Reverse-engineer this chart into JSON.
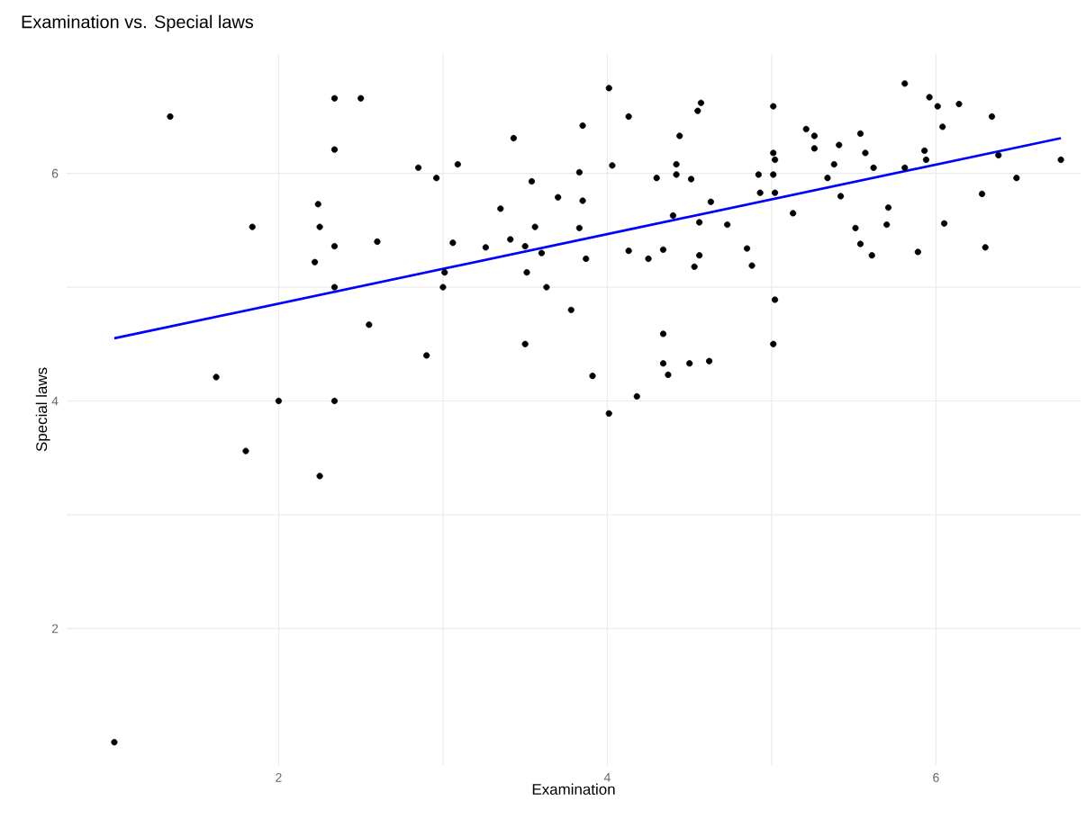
{
  "chart_data": {
    "type": "scatter",
    "title": "Examination vs. Special laws",
    "xlabel": "Examination",
    "ylabel": "Special laws",
    "xlim": [
      0.71,
      6.88
    ],
    "ylim": [
      0.8,
      7.05
    ],
    "xticks": [
      2,
      4,
      6
    ],
    "yticks": [
      2,
      4,
      6
    ],
    "grid": true,
    "series": [
      {
        "marker": "circle",
        "color": "#000000",
        "x": [
          1.0,
          1.34,
          2.34,
          2.5,
          2.34,
          2.85,
          2.24,
          1.84,
          2.25,
          2.34,
          2.6,
          2.22,
          2.34,
          2.55,
          2.9,
          1.62,
          2.0,
          2.34,
          1.8,
          2.25,
          2.96,
          3.09,
          3.43,
          4.01,
          4.13,
          3.85,
          4.55,
          4.57,
          4.44,
          4.03,
          3.83,
          4.42,
          4.42,
          4.3,
          4.51,
          3.54,
          3.7,
          3.85,
          3.35,
          4.63,
          4.4,
          4.56,
          4.73,
          3.56,
          3.83,
          3.06,
          3.26,
          3.41,
          3.5,
          3.6,
          3.87,
          4.13,
          4.34,
          4.25,
          4.56,
          4.53,
          4.85,
          4.88,
          3.01,
          3.0,
          3.51,
          3.63,
          3.78,
          3.5,
          4.34,
          4.34,
          4.37,
          4.5,
          4.62,
          3.91,
          4.18,
          4.01,
          5.01,
          5.01,
          5.02,
          4.92,
          5.01,
          4.93,
          5.02,
          5.13,
          5.02,
          5.01,
          5.21,
          5.26,
          5.26,
          5.34,
          5.38,
          5.41,
          5.42,
          5.54,
          5.57,
          5.62,
          5.51,
          5.54,
          5.61,
          5.71,
          5.7,
          5.81,
          5.81,
          5.89,
          5.96,
          6.01,
          6.04,
          5.93,
          5.94,
          6.05,
          6.14,
          6.34,
          6.38,
          6.28,
          6.3,
          6.49,
          6.76
        ],
        "values": [
          1.0,
          6.5,
          6.66,
          6.66,
          6.21,
          6.05,
          5.73,
          5.53,
          5.53,
          5.36,
          5.4,
          5.22,
          5.0,
          4.67,
          4.4,
          4.21,
          4.0,
          4.0,
          3.56,
          3.34,
          5.96,
          6.08,
          6.31,
          6.75,
          6.5,
          6.42,
          6.55,
          6.62,
          6.33,
          6.07,
          6.01,
          6.08,
          5.99,
          5.96,
          5.95,
          5.93,
          5.79,
          5.76,
          5.69,
          5.75,
          5.63,
          5.57,
          5.55,
          5.53,
          5.52,
          5.39,
          5.35,
          5.42,
          5.36,
          5.3,
          5.25,
          5.32,
          5.33,
          5.25,
          5.28,
          5.18,
          5.34,
          5.19,
          5.13,
          5.0,
          5.13,
          5.0,
          4.8,
          4.5,
          4.59,
          4.33,
          4.23,
          4.33,
          4.35,
          4.22,
          4.04,
          3.89,
          6.59,
          6.18,
          6.12,
          5.99,
          5.99,
          5.83,
          5.83,
          5.65,
          4.89,
          4.5,
          6.39,
          6.33,
          6.22,
          5.96,
          6.08,
          6.25,
          5.8,
          6.35,
          6.18,
          6.05,
          5.52,
          5.38,
          5.28,
          5.7,
          5.55,
          6.79,
          6.05,
          5.31,
          6.67,
          6.59,
          6.41,
          6.2,
          6.12,
          5.56,
          6.61,
          6.5,
          6.16,
          5.82,
          5.35,
          5.96,
          6.12
        ]
      },
      {
        "type": "line",
        "color": "#0000ff",
        "x": [
          1,
          6.76
        ],
        "values": [
          4.55,
          6.31
        ]
      }
    ]
  }
}
